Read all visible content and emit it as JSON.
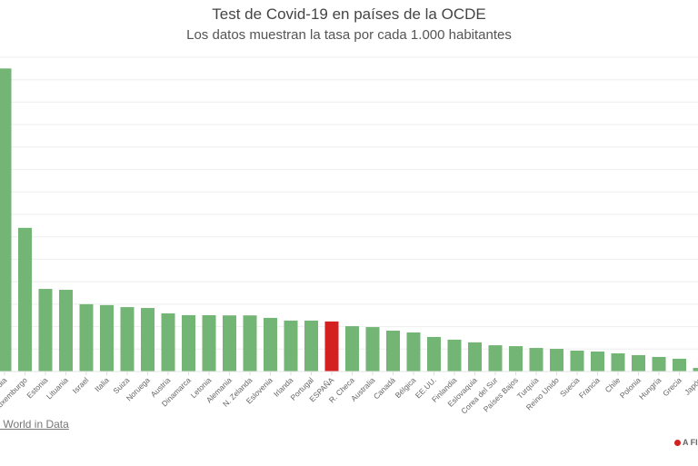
{
  "chart_data": {
    "type": "bar",
    "title": "Test de Covid-19 en países de la OCDE",
    "subtitle": "Los datos muestran la tasa por cada 1.000 habitantes",
    "xlabel": "",
    "ylabel": "",
    "grid": true,
    "ylim": [
      0,
      140
    ],
    "categories": [
      "Islandia",
      "Luxemburgo",
      "Estonia",
      "Lituania",
      "Israel",
      "Italia",
      "Suiza",
      "Noruega",
      "Austria",
      "Dinamarca",
      "Letonia",
      "Alemania",
      "N. Zelanda",
      "Eslovenia",
      "Irlanda",
      "Portugal",
      "ESPAÑA",
      "R. Checa",
      "Australia",
      "Canadá",
      "Bélgica",
      "EE.UU.",
      "Finlandia",
      "Eslovaquia",
      "Corea del Sur",
      "Países Bajos",
      "Turquía",
      "Reino Unido",
      "Suecia",
      "Francia",
      "Chile",
      "Polonia",
      "Hungría",
      "Grecia",
      "Japón"
    ],
    "values": [
      135,
      64,
      36.8,
      36.4,
      30,
      29.6,
      28.7,
      28.3,
      25.9,
      25.1,
      25.1,
      25,
      25,
      23.9,
      22.7,
      22.7,
      22.3,
      20.2,
      19.8,
      18.2,
      17.4,
      15.4,
      14.2,
      13,
      11.7,
      11.3,
      10.5,
      10.1,
      9.3,
      8.9,
      8.1,
      7.3,
      6.5,
      5.7,
      1.6
    ],
    "highlight": "ESPAÑA",
    "colors": {
      "bar": "#72b574",
      "highlight": "#d42020",
      "grid": "#eeeeee"
    }
  },
  "source": "Our World in Data",
  "logo_text": "A FI"
}
